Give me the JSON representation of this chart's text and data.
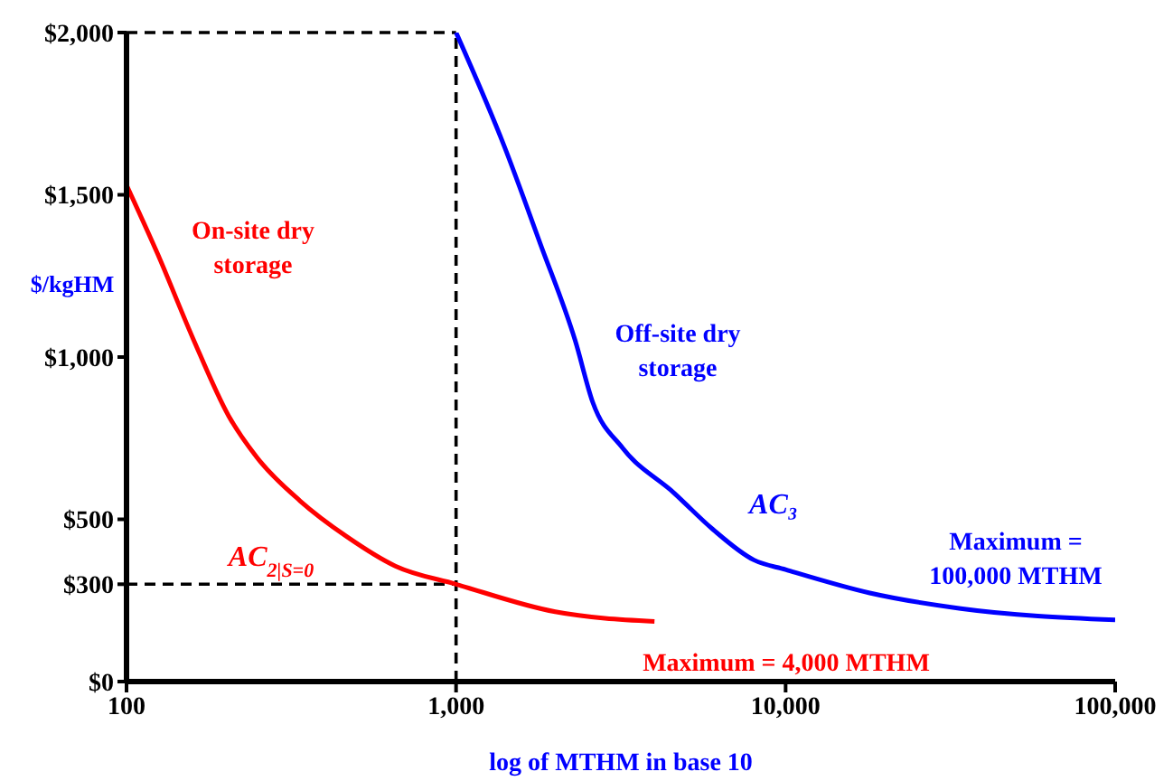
{
  "chart_data": {
    "type": "line",
    "xlabel": "log of MTHM in base 10",
    "ylabel": "$/kgHM",
    "log": "x",
    "xlim": [
      100,
      100000
    ],
    "xticks": [
      {
        "value": 100,
        "label": "100"
      },
      {
        "value": 1000,
        "label": "1,000"
      },
      {
        "value": 10000,
        "label": "10,000"
      },
      {
        "value": 100000,
        "label": "100,000"
      }
    ],
    "ylim": [
      0,
      2000
    ],
    "yticks": [
      {
        "value": 0,
        "label": "$0"
      },
      {
        "value": 300,
        "label": "$300"
      },
      {
        "value": 500,
        "label": "$500"
      },
      {
        "value": 1000,
        "label": "$1,000"
      },
      {
        "value": 1500,
        "label": "$1,500"
      },
      {
        "value": 2000,
        "label": "$2,000"
      }
    ],
    "marker": "none",
    "series": [
      {
        "color": "#ff0000",
        "x": [
          100,
          124,
          159,
          204,
          249,
          336,
          467,
          654,
          1000,
          2000,
          4000
        ],
        "values": [
          1530,
          1320,
          1058,
          819,
          690,
          557,
          446,
          356,
          300,
          215,
          185
        ]
      },
      {
        "color": "#0000ff",
        "x": [
          1000,
          1400,
          1800,
          2300,
          2600,
          3200,
          4600,
          6000,
          8000,
          10000,
          18000,
          34000,
          100000
        ],
        "values": [
          2000,
          1650,
          1350,
          1050,
          860,
          720,
          580,
          470,
          375,
          345,
          273,
          225,
          190
        ]
      }
    ],
    "ref_lines": [
      {
        "axis": "x",
        "value": 1000,
        "color": "#000000",
        "line_style": "dashed"
      },
      {
        "axis": "y",
        "value": 2000,
        "color": "#000000",
        "line_style": "dashed"
      },
      {
        "axis": "y",
        "value": 300,
        "color": "#000000",
        "line_style": "dashed"
      }
    ],
    "annotations": [
      "On-site dry storage",
      "Off-site dry storage",
      "AC$_{2|S=0}$",
      "AC₃",
      "Maximum = 100,000 MTHM",
      "Maximum = 4,000 MTHM"
    ]
  }
}
